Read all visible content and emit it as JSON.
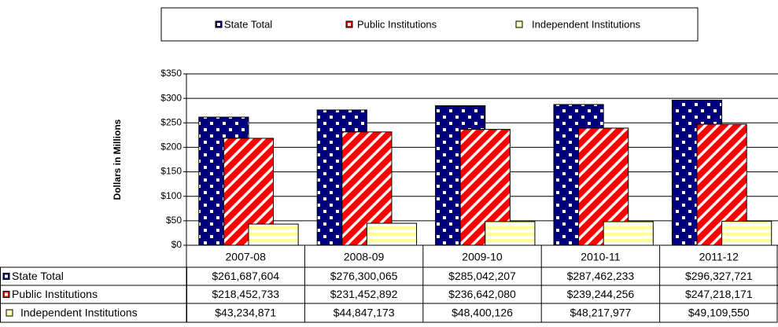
{
  "chart_data": {
    "type": "bar",
    "y_axis_label": "Dollars in Millions",
    "categories": [
      "2007-08",
      "2008-09",
      "2009-10",
      "2010-11",
      "2011-12"
    ],
    "series": [
      {
        "name": "State Total",
        "color": "#000080",
        "values": [
          261.687604,
          276.300065,
          285.042207,
          287.462233,
          296.327721
        ],
        "value_labels": [
          "$261,687,604",
          "$276,300,065",
          "$285,042,207",
          "$287,462,233",
          "$296,327,721"
        ]
      },
      {
        "name": "Public Institutions",
        "color": "#ff0000",
        "values": [
          218.452733,
          231.452892,
          236.64208,
          239.244256,
          247.218171
        ],
        "value_labels": [
          "$218,452,733",
          "$231,452,892",
          "$236,642,080",
          "$239,244,256",
          "$247,218,171"
        ]
      },
      {
        "name": "Independent Institutions",
        "color": "#ffff99",
        "values": [
          43.234871,
          44.847173,
          48.400126,
          48.217977,
          49.10955
        ],
        "value_labels": [
          "$43,234,871",
          "$44,847,173",
          "$48,400,126",
          "$48,217,977",
          "$49,109,550"
        ]
      }
    ],
    "ylim": [
      0,
      350
    ],
    "yticks": [
      {
        "value": 0,
        "label": "$0"
      },
      {
        "value": 50,
        "label": "$50"
      },
      {
        "value": 100,
        "label": "$100"
      },
      {
        "value": 150,
        "label": "$150"
      },
      {
        "value": 200,
        "label": "$200"
      },
      {
        "value": 250,
        "label": "$250"
      },
      {
        "value": 300,
        "label": "$300"
      },
      {
        "value": 350,
        "label": "$350"
      }
    ],
    "grid": true,
    "legend": "top"
  }
}
